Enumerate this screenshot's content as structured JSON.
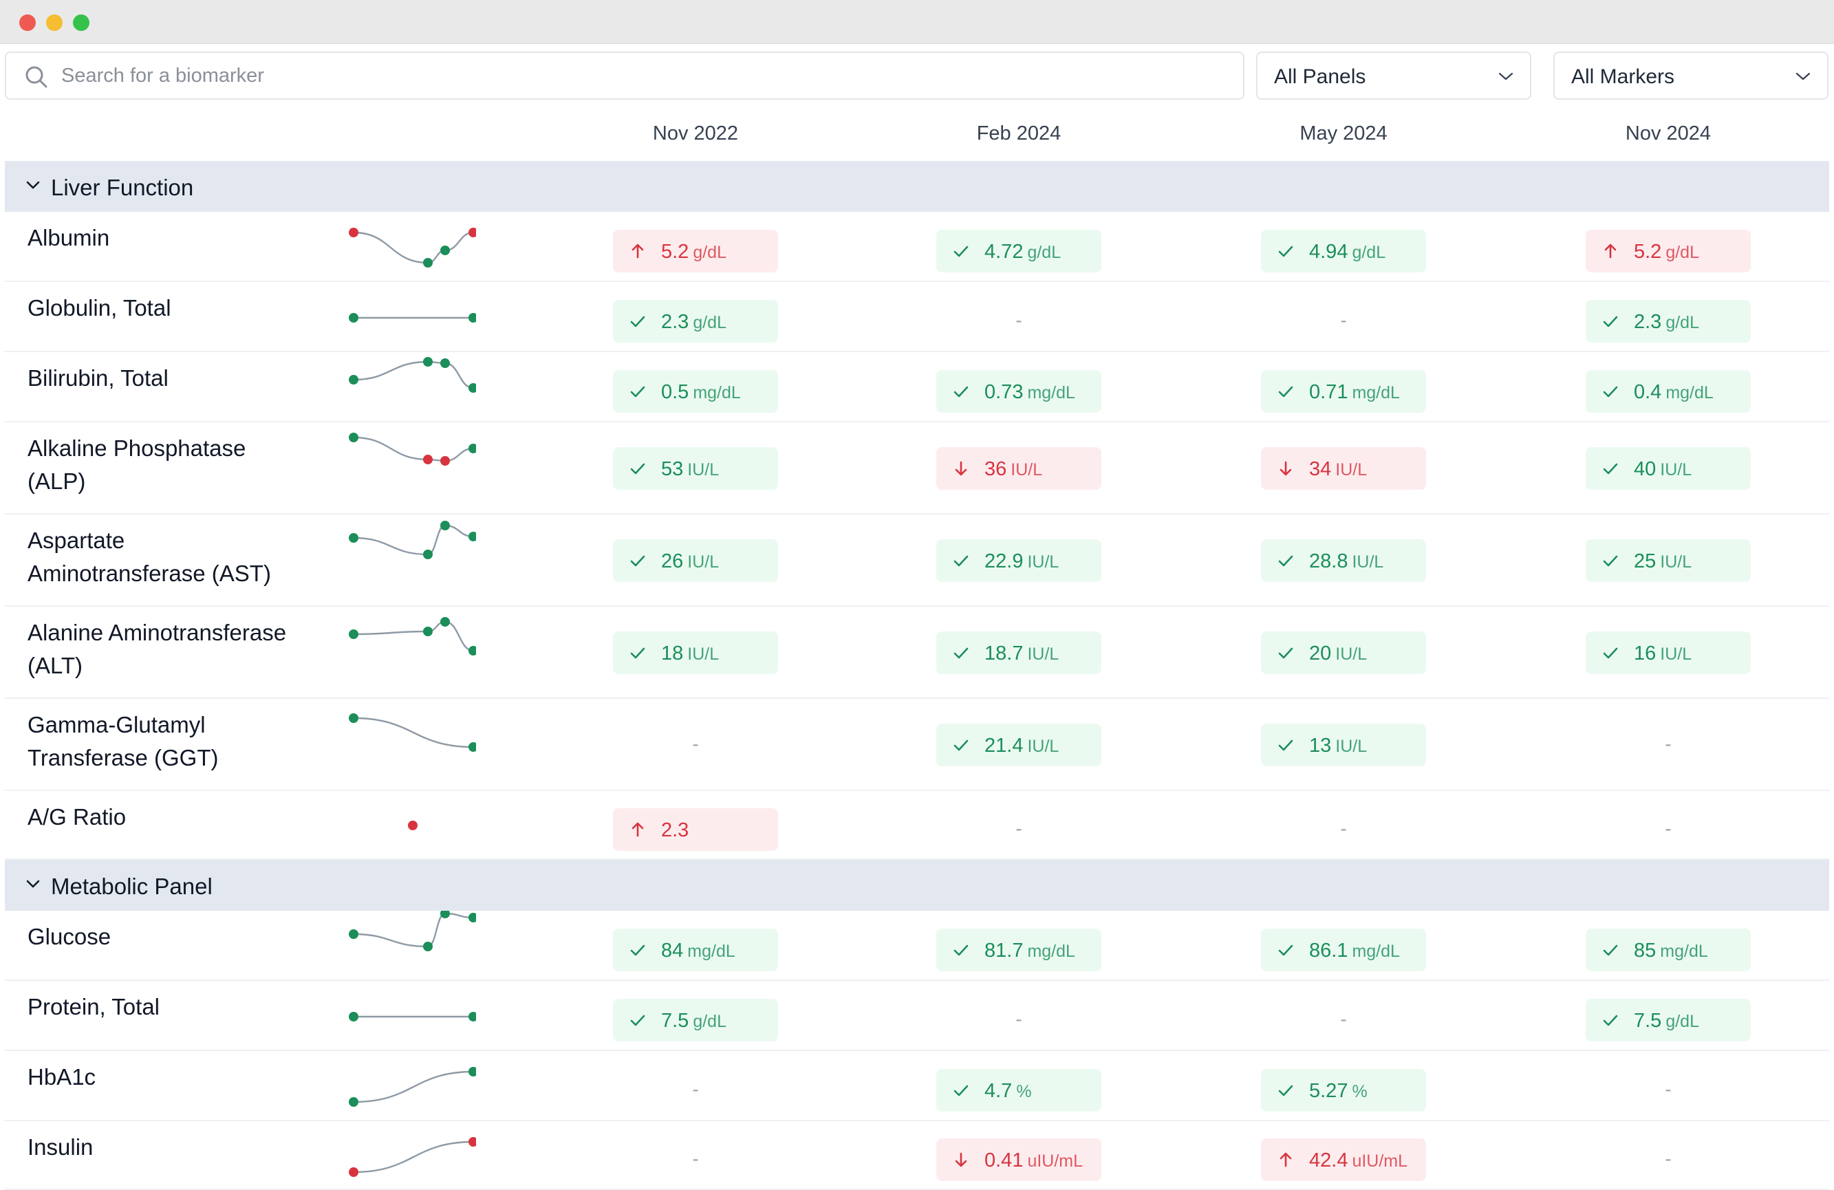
{
  "search": {
    "placeholder": "Search for a biomarker",
    "icon": "search-icon"
  },
  "filters": {
    "panels": "All Panels",
    "markers": "All Markers"
  },
  "columns": [
    "Nov 2022",
    "Feb 2024",
    "May 2024",
    "Nov 2024"
  ],
  "colors": {
    "normal": "#1b8e5a",
    "abnormal": "#d8343f",
    "section_bg": "#e3e8f0",
    "spark_line": "#8e9aa5"
  },
  "sections": [
    {
      "title": "Liver Function",
      "rows": [
        {
          "name": "Albumin",
          "name_lines": [
            "Albumin"
          ],
          "values": [
            {
              "value": "5.2",
              "unit": "g/dL",
              "status": "high"
            },
            {
              "value": "4.72",
              "unit": "g/dL",
              "status": "ok"
            },
            {
              "value": "4.94",
              "unit": "g/dL",
              "status": "ok"
            },
            {
              "value": "5.2",
              "unit": "g/dL",
              "status": "high"
            }
          ]
        },
        {
          "name": "Globulin, Total",
          "name_lines": [
            "Globulin, Total"
          ],
          "values": [
            {
              "value": "2.3",
              "unit": "g/dL",
              "status": "ok"
            },
            {
              "value": "-",
              "status": "none"
            },
            {
              "value": "-",
              "status": "none"
            },
            {
              "value": "2.3",
              "unit": "g/dL",
              "status": "ok"
            }
          ]
        },
        {
          "name": "Bilirubin, Total",
          "name_lines": [
            "Bilirubin, Total"
          ],
          "values": [
            {
              "value": "0.5",
              "unit": "mg/dL",
              "status": "ok"
            },
            {
              "value": "0.73",
              "unit": "mg/dL",
              "status": "ok"
            },
            {
              "value": "0.71",
              "unit": "mg/dL",
              "status": "ok"
            },
            {
              "value": "0.4",
              "unit": "mg/dL",
              "status": "ok"
            }
          ]
        },
        {
          "name": "Alkaline Phosphatase (ALP)",
          "name_lines": [
            "Alkaline Phosphatase",
            "(ALP)"
          ],
          "values": [
            {
              "value": "53",
              "unit": "IU/L",
              "status": "ok"
            },
            {
              "value": "36",
              "unit": "IU/L",
              "status": "low"
            },
            {
              "value": "34",
              "unit": "IU/L",
              "status": "low"
            },
            {
              "value": "40",
              "unit": "IU/L",
              "status": "ok"
            }
          ]
        },
        {
          "name": "Aspartate Aminotransferase (AST)",
          "name_lines": [
            "Aspartate",
            "Aminotransferase (AST)"
          ],
          "values": [
            {
              "value": "26",
              "unit": "IU/L",
              "status": "ok"
            },
            {
              "value": "22.9",
              "unit": "IU/L",
              "status": "ok"
            },
            {
              "value": "28.8",
              "unit": "IU/L",
              "status": "ok"
            },
            {
              "value": "25",
              "unit": "IU/L",
              "status": "ok"
            }
          ]
        },
        {
          "name": "Alanine Aminotransferase (ALT)",
          "name_lines": [
            "Alanine Aminotransferase",
            "(ALT)"
          ],
          "values": [
            {
              "value": "18",
              "unit": "IU/L",
              "status": "ok"
            },
            {
              "value": "18.7",
              "unit": "IU/L",
              "status": "ok"
            },
            {
              "value": "20",
              "unit": "IU/L",
              "status": "ok"
            },
            {
              "value": "16",
              "unit": "IU/L",
              "status": "ok"
            }
          ]
        },
        {
          "name": "Gamma-Glutamyl Transferase (GGT)",
          "name_lines": [
            "Gamma-Glutamyl",
            "Transferase (GGT)"
          ],
          "values": [
            {
              "value": "-",
              "status": "none"
            },
            {
              "value": "21.4",
              "unit": "IU/L",
              "status": "ok"
            },
            {
              "value": "13",
              "unit": "IU/L",
              "status": "ok"
            },
            {
              "value": "-",
              "status": "none"
            }
          ]
        },
        {
          "name": "A/G Ratio",
          "name_lines": [
            "A/G Ratio"
          ],
          "values": [
            {
              "value": "2.3",
              "unit": "",
              "status": "high"
            },
            {
              "value": "-",
              "status": "none"
            },
            {
              "value": "-",
              "status": "none"
            },
            {
              "value": "-",
              "status": "none"
            }
          ]
        }
      ]
    },
    {
      "title": "Metabolic Panel",
      "rows": [
        {
          "name": "Glucose",
          "name_lines": [
            "Glucose"
          ],
          "values": [
            {
              "value": "84",
              "unit": "mg/dL",
              "status": "ok"
            },
            {
              "value": "81.7",
              "unit": "mg/dL",
              "status": "ok"
            },
            {
              "value": "86.1",
              "unit": "mg/dL",
              "status": "ok"
            },
            {
              "value": "85",
              "unit": "mg/dL",
              "status": "ok"
            }
          ]
        },
        {
          "name": "Protein, Total",
          "name_lines": [
            "Protein, Total"
          ],
          "values": [
            {
              "value": "7.5",
              "unit": "g/dL",
              "status": "ok"
            },
            {
              "value": "-",
              "status": "none"
            },
            {
              "value": "-",
              "status": "none"
            },
            {
              "value": "7.5",
              "unit": "g/dL",
              "status": "ok"
            }
          ]
        },
        {
          "name": "HbA1c",
          "name_lines": [
            "HbA1c"
          ],
          "values": [
            {
              "value": "-",
              "status": "none"
            },
            {
              "value": "4.7",
              "unit": "%",
              "status": "ok"
            },
            {
              "value": "5.27",
              "unit": "%",
              "status": "ok"
            },
            {
              "value": "-",
              "status": "none"
            }
          ]
        },
        {
          "name": "Insulin",
          "name_lines": [
            "Insulin"
          ],
          "values": [
            {
              "value": "-",
              "status": "none"
            },
            {
              "value": "0.41",
              "unit": "uIU/mL",
              "status": "low"
            },
            {
              "value": "42.4",
              "unit": "uIU/mL",
              "status": "high"
            },
            {
              "value": "-",
              "status": "none"
            }
          ]
        }
      ]
    }
  ]
}
